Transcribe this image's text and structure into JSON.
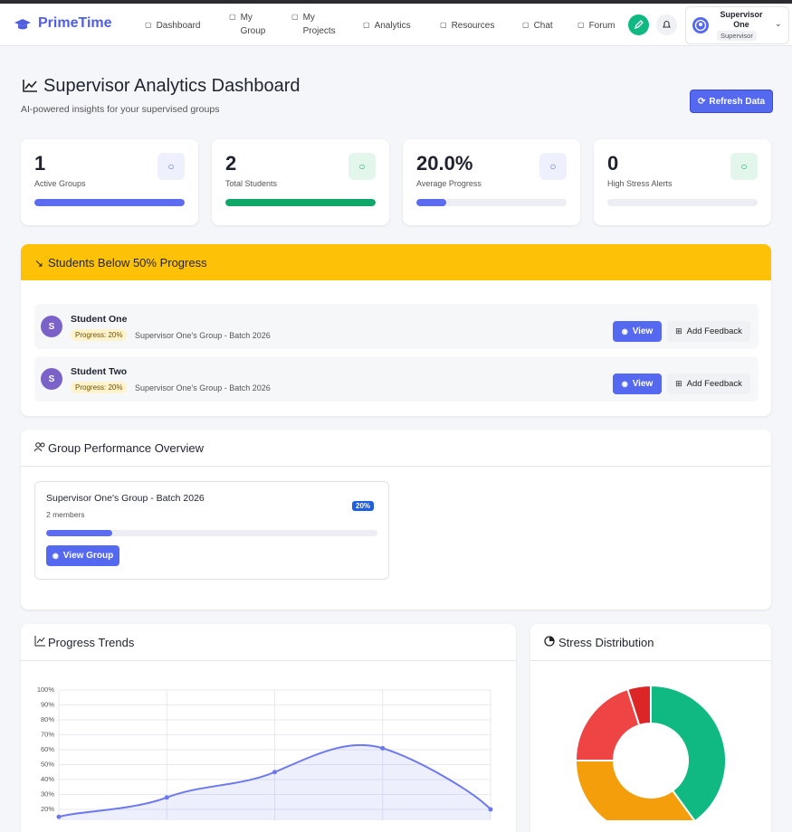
{
  "nav": {
    "brand": "PrimeTime",
    "links": [
      "Dashboard",
      "My Group",
      "My Projects",
      "Analytics",
      "Resources",
      "Chat",
      "Forum"
    ],
    "user_name": "Supervisor One",
    "user_role": "Supervisor"
  },
  "header": {
    "title": "Supervisor Analytics Dashboard",
    "subtitle": "AI-powered insights for your supervised groups",
    "refresh_button": "Refresh Data"
  },
  "stats": [
    {
      "value": "1",
      "label": "Active Groups",
      "bar": 100
    },
    {
      "value": "2",
      "label": "Total Students",
      "bar": 100
    },
    {
      "value": "20.0%",
      "label": "Average Progress",
      "bar": 20
    },
    {
      "value": "0",
      "label": "High Stress Alerts",
      "bar": 0
    }
  ],
  "alert": {
    "title": "Students Below 50% Progress",
    "view_button": "View",
    "feedback_button": "Add Feedback",
    "students": [
      {
        "initial": "S",
        "name": "Student One",
        "badge": "Progress: 20%",
        "group": "Supervisor One's Group - Batch 2026"
      },
      {
        "initial": "S",
        "name": "Student Two",
        "badge": "Progress: 20%",
        "group": "Supervisor One's Group - Batch 2026"
      }
    ]
  },
  "groups": {
    "title": "Group Performance Overview",
    "items": [
      {
        "name": "Supervisor One's Group - Batch 2026",
        "members": "2 members",
        "badge": "20%",
        "progress": 20,
        "button": "View Group"
      }
    ]
  },
  "chart_data": [
    {
      "type": "line",
      "title": "Progress Trends",
      "categories": [
        null,
        null,
        null,
        null,
        null
      ],
      "values": [
        15,
        28,
        45,
        61,
        20
      ],
      "color": "#6b78f0",
      "ylim": [
        0,
        100
      ],
      "grid": true,
      "yticks": [
        {
          "value": 20,
          "label": "20%"
        },
        {
          "value": 30,
          "label": "30%"
        },
        {
          "value": 40,
          "label": "40%"
        },
        {
          "value": 50,
          "label": "50%"
        },
        {
          "value": 60,
          "label": "60%"
        },
        {
          "value": 70,
          "label": "70%"
        },
        {
          "value": 80,
          "label": "80%"
        },
        {
          "value": 90,
          "label": "90%"
        },
        {
          "value": 100,
          "label": "100%"
        }
      ]
    },
    {
      "type": "doughnut",
      "title": "Stress Distribution",
      "categories": [
        null,
        null,
        null,
        null
      ],
      "values": [
        40,
        35,
        20,
        5
      ],
      "colors": [
        "#10b981",
        "#f59e0b",
        "#ef4444",
        "#dc2626"
      ]
    }
  ]
}
